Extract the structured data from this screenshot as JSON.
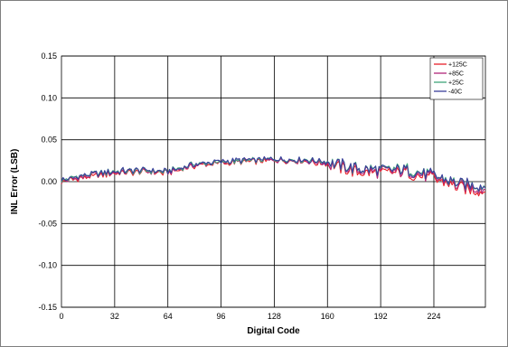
{
  "chart_data": {
    "type": "line",
    "title": "",
    "xlabel": "Digital Code",
    "ylabel": "INL Error (LSB)",
    "xlim": [
      0,
      255
    ],
    "ylim": [
      -0.15,
      0.15
    ],
    "x_ticks": [
      0,
      32,
      64,
      96,
      128,
      160,
      192,
      224
    ],
    "x_tick_labels": [
      "0",
      "32",
      "64",
      "96",
      "128",
      "160",
      "192",
      "224"
    ],
    "y_ticks": [
      -0.15,
      -0.1,
      -0.05,
      0.0,
      0.05,
      0.1,
      0.15
    ],
    "y_tick_labels": [
      "-0.15",
      "-0.10",
      "-0.05",
      "0.00",
      "0.05",
      "0.10",
      "0.15"
    ],
    "grid": true,
    "legend_position": "top-right",
    "x": [
      0,
      16,
      32,
      48,
      64,
      80,
      96,
      112,
      128,
      144,
      160,
      176,
      192,
      208,
      224,
      240,
      255
    ],
    "series": [
      {
        "name": "+125C",
        "color": "#e8202a",
        "values": [
          0.0,
          0.006,
          0.01,
          0.012,
          0.01,
          0.019,
          0.022,
          0.024,
          0.025,
          0.024,
          0.021,
          0.012,
          0.01,
          0.011,
          0.003,
          -0.007,
          -0.012
        ]
      },
      {
        "name": "+85C",
        "color": "#b0267a",
        "values": [
          0.001,
          0.007,
          0.011,
          0.013,
          0.011,
          0.02,
          0.023,
          0.025,
          0.026,
          0.025,
          0.022,
          0.014,
          0.012,
          0.013,
          0.005,
          -0.005,
          -0.009
        ]
      },
      {
        "name": "+25C",
        "color": "#3fa37a",
        "values": [
          0.002,
          0.008,
          0.012,
          0.013,
          0.012,
          0.021,
          0.023,
          0.025,
          0.027,
          0.026,
          0.024,
          0.016,
          0.014,
          0.015,
          0.007,
          -0.003,
          -0.006
        ]
      },
      {
        "name": "-40C",
        "color": "#3a3f9b",
        "values": [
          0.002,
          0.008,
          0.012,
          0.014,
          0.012,
          0.021,
          0.024,
          0.026,
          0.027,
          0.026,
          0.024,
          0.016,
          0.014,
          0.014,
          0.007,
          -0.003,
          -0.005
        ]
      }
    ]
  }
}
